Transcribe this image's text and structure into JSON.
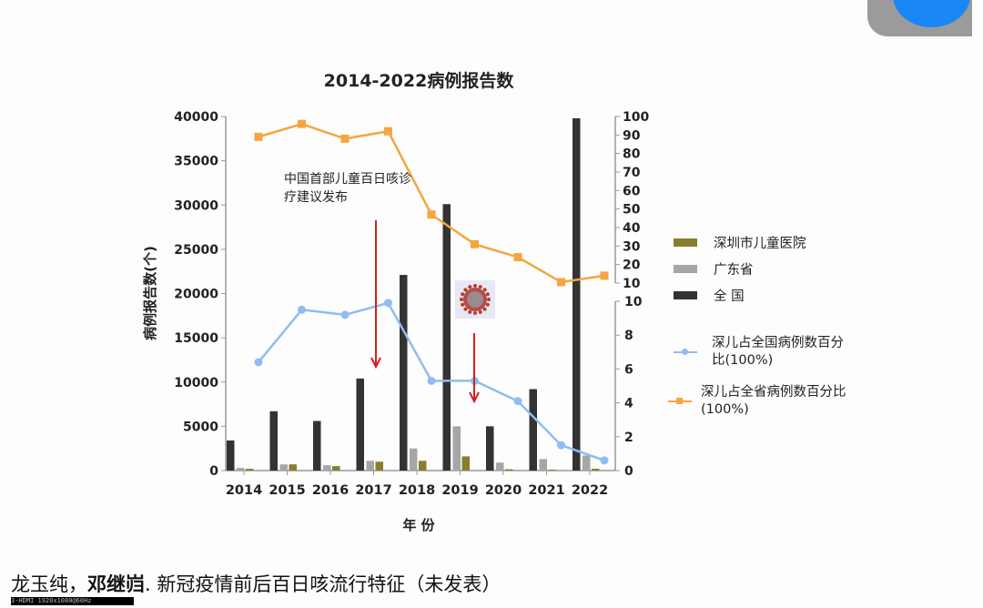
{
  "colors": {
    "national": "#333333",
    "guangdong": "#a6a6a6",
    "shenzhen": "#8a7d2e",
    "line_blue": "#8fbcf2",
    "line_orange": "#f5a540",
    "arrow": "#d81e1e",
    "corner_gray": "#9b9b9b",
    "corner_blue": "#1a87f5"
  },
  "chart_data": {
    "type": "bar",
    "title": "2014-2022病例报告数",
    "xlabel": "年 份",
    "ylabel": "病例报告数(个)",
    "categories": [
      "2014",
      "2015",
      "2016",
      "2017",
      "2018",
      "2019",
      "2020",
      "2021",
      "2022"
    ],
    "ylim": [
      0,
      40000
    ],
    "yticks": [
      "0",
      "5000",
      "10000",
      "15000",
      "20000",
      "25000",
      "30000",
      "35000",
      "40000"
    ],
    "right_upper_ylim": [
      10,
      100
    ],
    "right_upper_ticks": [
      "10",
      "20",
      "30",
      "40",
      "50",
      "60",
      "70",
      "80",
      "90",
      "100"
    ],
    "right_lower_ylim": [
      0,
      10
    ],
    "right_lower_ticks": [
      "0",
      "2",
      "4",
      "6",
      "8",
      "10"
    ],
    "series": [
      {
        "name": "深圳市儿童医院",
        "type": "bar",
        "values": [
          200,
          700,
          500,
          1000,
          1100,
          1600,
          150,
          100,
          200
        ]
      },
      {
        "name": "广东省",
        "type": "bar",
        "values": [
          300,
          700,
          600,
          1100,
          2500,
          5000,
          900,
          1300,
          1700
        ]
      },
      {
        "name": "全 国",
        "type": "bar",
        "values": [
          3400,
          6700,
          5600,
          10400,
          22100,
          30100,
          5000,
          9200,
          39800
        ]
      },
      {
        "name": "深儿占全国病例数百分比(100%)",
        "type": "line",
        "axis": "right-lower",
        "values": [
          6.4,
          9.5,
          9.2,
          9.9,
          5.3,
          5.3,
          4.1,
          1.5,
          0.6
        ]
      },
      {
        "name": "深儿占全省病例数百分比(100%)",
        "type": "line",
        "axis": "right-upper",
        "values": [
          89,
          96,
          88,
          92,
          47,
          31,
          24,
          10.5,
          14
        ]
      }
    ],
    "legend_position": "right",
    "grid": false,
    "annotations": [
      {
        "text": "中国首部儿童百日咳诊疗建议发布",
        "category": "2017"
      },
      {
        "icon": "coronavirus-icon",
        "category": "2019"
      }
    ]
  },
  "legend": [
    {
      "label": "深圳市儿童医院"
    },
    {
      "label": "广东省"
    },
    {
      "label": "全 国"
    },
    {
      "label": "深儿占全国病例数百分比(100%)"
    },
    {
      "label": "深儿占全省病例数百分比(100%)"
    }
  ],
  "annotation_text": "中国首部儿童百日咳诊疗建议发布",
  "citation": {
    "authors_plain": "龙玉纯，",
    "author_bold": "邓继岿",
    "rest": ". 新冠疫情前后百日咳流行特征（未发表）"
  },
  "watermark": "3-HDMI 1920x1080@60Hz"
}
